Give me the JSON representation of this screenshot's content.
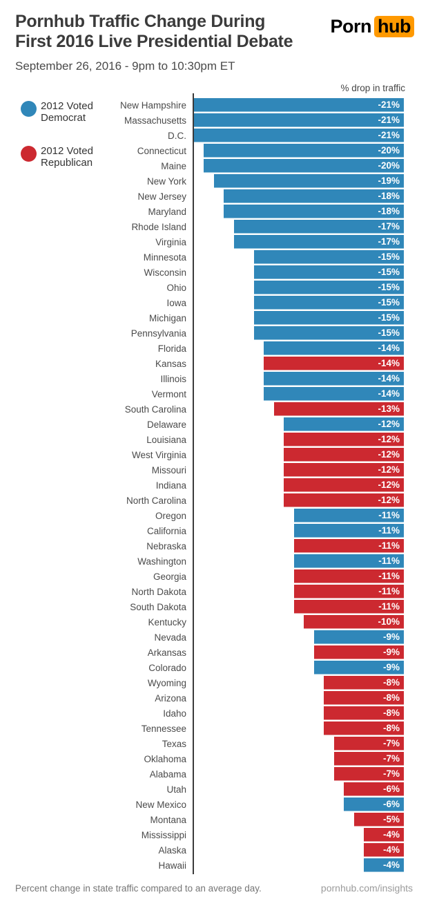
{
  "header": {
    "title_line1": "Pornhub Traffic Change During",
    "title_line2": "First 2016 Live Presidential Debate",
    "subtitle": "September 26, 2016 - 9pm to 10:30pm ET",
    "logo": {
      "part1": "Porn",
      "part2": "hub",
      "accent_color": "#ff9900"
    }
  },
  "legend": {
    "democrat": {
      "line1": "2012 Voted",
      "line2": "Democrat",
      "color": "#3087b9"
    },
    "republican": {
      "line1": "2012 Voted",
      "line2": "Republican",
      "color": "#cc2930"
    }
  },
  "chart_data": {
    "type": "bar",
    "orientation": "horizontal-right-aligned",
    "title": "Pornhub Traffic Change During First 2016 Live Presidential Debate",
    "subtitle": "September 26, 2016 - 9pm to 10:30pm ET",
    "axis_label": "% drop in traffic",
    "unit": "%",
    "value_range": [
      -21,
      0
    ],
    "grid": false,
    "legend_position": "top-left",
    "series_colors": {
      "democrat": "#3087b9",
      "republican": "#cc2930"
    },
    "rows": [
      {
        "state": "New Hampshire",
        "value": -21,
        "label": "-21%",
        "party": "democrat"
      },
      {
        "state": "Massachusetts",
        "value": -21,
        "label": "-21%",
        "party": "democrat"
      },
      {
        "state": "D.C.",
        "value": -21,
        "label": "-21%",
        "party": "democrat"
      },
      {
        "state": "Connecticut",
        "value": -20,
        "label": "-20%",
        "party": "democrat"
      },
      {
        "state": "Maine",
        "value": -20,
        "label": "-20%",
        "party": "democrat"
      },
      {
        "state": "New York",
        "value": -19,
        "label": "-19%",
        "party": "democrat"
      },
      {
        "state": "New Jersey",
        "value": -18,
        "label": "-18%",
        "party": "democrat"
      },
      {
        "state": "Maryland",
        "value": -18,
        "label": "-18%",
        "party": "democrat"
      },
      {
        "state": "Rhode Island",
        "value": -17,
        "label": "-17%",
        "party": "democrat"
      },
      {
        "state": "Virginia",
        "value": -17,
        "label": "-17%",
        "party": "democrat"
      },
      {
        "state": "Minnesota",
        "value": -15,
        "label": "-15%",
        "party": "democrat"
      },
      {
        "state": "Wisconsin",
        "value": -15,
        "label": "-15%",
        "party": "democrat"
      },
      {
        "state": "Ohio",
        "value": -15,
        "label": "-15%",
        "party": "democrat"
      },
      {
        "state": "Iowa",
        "value": -15,
        "label": "-15%",
        "party": "democrat"
      },
      {
        "state": "Michigan",
        "value": -15,
        "label": "-15%",
        "party": "democrat"
      },
      {
        "state": "Pennsylvania",
        "value": -15,
        "label": "-15%",
        "party": "democrat"
      },
      {
        "state": "Florida",
        "value": -14,
        "label": "-14%",
        "party": "democrat"
      },
      {
        "state": "Kansas",
        "value": -14,
        "label": "-14%",
        "party": "republican"
      },
      {
        "state": "Illinois",
        "value": -14,
        "label": "-14%",
        "party": "democrat"
      },
      {
        "state": "Vermont",
        "value": -14,
        "label": "-14%",
        "party": "democrat"
      },
      {
        "state": "South Carolina",
        "value": -13,
        "label": "-13%",
        "party": "republican"
      },
      {
        "state": "Delaware",
        "value": -12,
        "label": "-12%",
        "party": "democrat"
      },
      {
        "state": "Louisiana",
        "value": -12,
        "label": "-12%",
        "party": "republican"
      },
      {
        "state": "West Virginia",
        "value": -12,
        "label": "-12%",
        "party": "republican"
      },
      {
        "state": "Missouri",
        "value": -12,
        "label": "-12%",
        "party": "republican"
      },
      {
        "state": "Indiana",
        "value": -12,
        "label": "-12%",
        "party": "republican"
      },
      {
        "state": "North Carolina",
        "value": -12,
        "label": "-12%",
        "party": "republican"
      },
      {
        "state": "Oregon",
        "value": -11,
        "label": "-11%",
        "party": "democrat"
      },
      {
        "state": "California",
        "value": -11,
        "label": "-11%",
        "party": "democrat"
      },
      {
        "state": "Nebraska",
        "value": -11,
        "label": "-11%",
        "party": "republican"
      },
      {
        "state": "Washington",
        "value": -11,
        "label": "-11%",
        "party": "democrat"
      },
      {
        "state": "Georgia",
        "value": -11,
        "label": "-11%",
        "party": "republican"
      },
      {
        "state": "North Dakota",
        "value": -11,
        "label": "-11%",
        "party": "republican"
      },
      {
        "state": "South Dakota",
        "value": -11,
        "label": "-11%",
        "party": "republican"
      },
      {
        "state": "Kentucky",
        "value": -10,
        "label": "-10%",
        "party": "republican"
      },
      {
        "state": "Nevada",
        "value": -9,
        "label": "-9%",
        "party": "democrat"
      },
      {
        "state": "Arkansas",
        "value": -9,
        "label": "-9%",
        "party": "republican"
      },
      {
        "state": "Colorado",
        "value": -9,
        "label": "-9%",
        "party": "democrat"
      },
      {
        "state": "Wyoming",
        "value": -8,
        "label": "-8%",
        "party": "republican"
      },
      {
        "state": "Arizona",
        "value": -8,
        "label": "-8%",
        "party": "republican"
      },
      {
        "state": "Idaho",
        "value": -8,
        "label": "-8%",
        "party": "republican"
      },
      {
        "state": "Tennessee",
        "value": -8,
        "label": "-8%",
        "party": "republican"
      },
      {
        "state": "Texas",
        "value": -7,
        "label": "-7%",
        "party": "republican"
      },
      {
        "state": "Oklahoma",
        "value": -7,
        "label": "-7%",
        "party": "republican"
      },
      {
        "state": "Alabama",
        "value": -7,
        "label": "-7%",
        "party": "republican"
      },
      {
        "state": "Utah",
        "value": -6,
        "label": "-6%",
        "party": "republican"
      },
      {
        "state": "New Mexico",
        "value": -6,
        "label": "-6%",
        "party": "democrat"
      },
      {
        "state": "Montana",
        "value": -5,
        "label": "-5%",
        "party": "republican"
      },
      {
        "state": "Mississippi",
        "value": -4,
        "label": "-4%",
        "party": "republican"
      },
      {
        "state": "Alaska",
        "value": -4,
        "label": "-4%",
        "party": "republican"
      },
      {
        "state": "Hawaii",
        "value": -4,
        "label": "-4%",
        "party": "democrat"
      }
    ]
  },
  "footer": {
    "note": "Percent change in state traffic compared to an average day.",
    "link": "pornhub.com/insights"
  }
}
